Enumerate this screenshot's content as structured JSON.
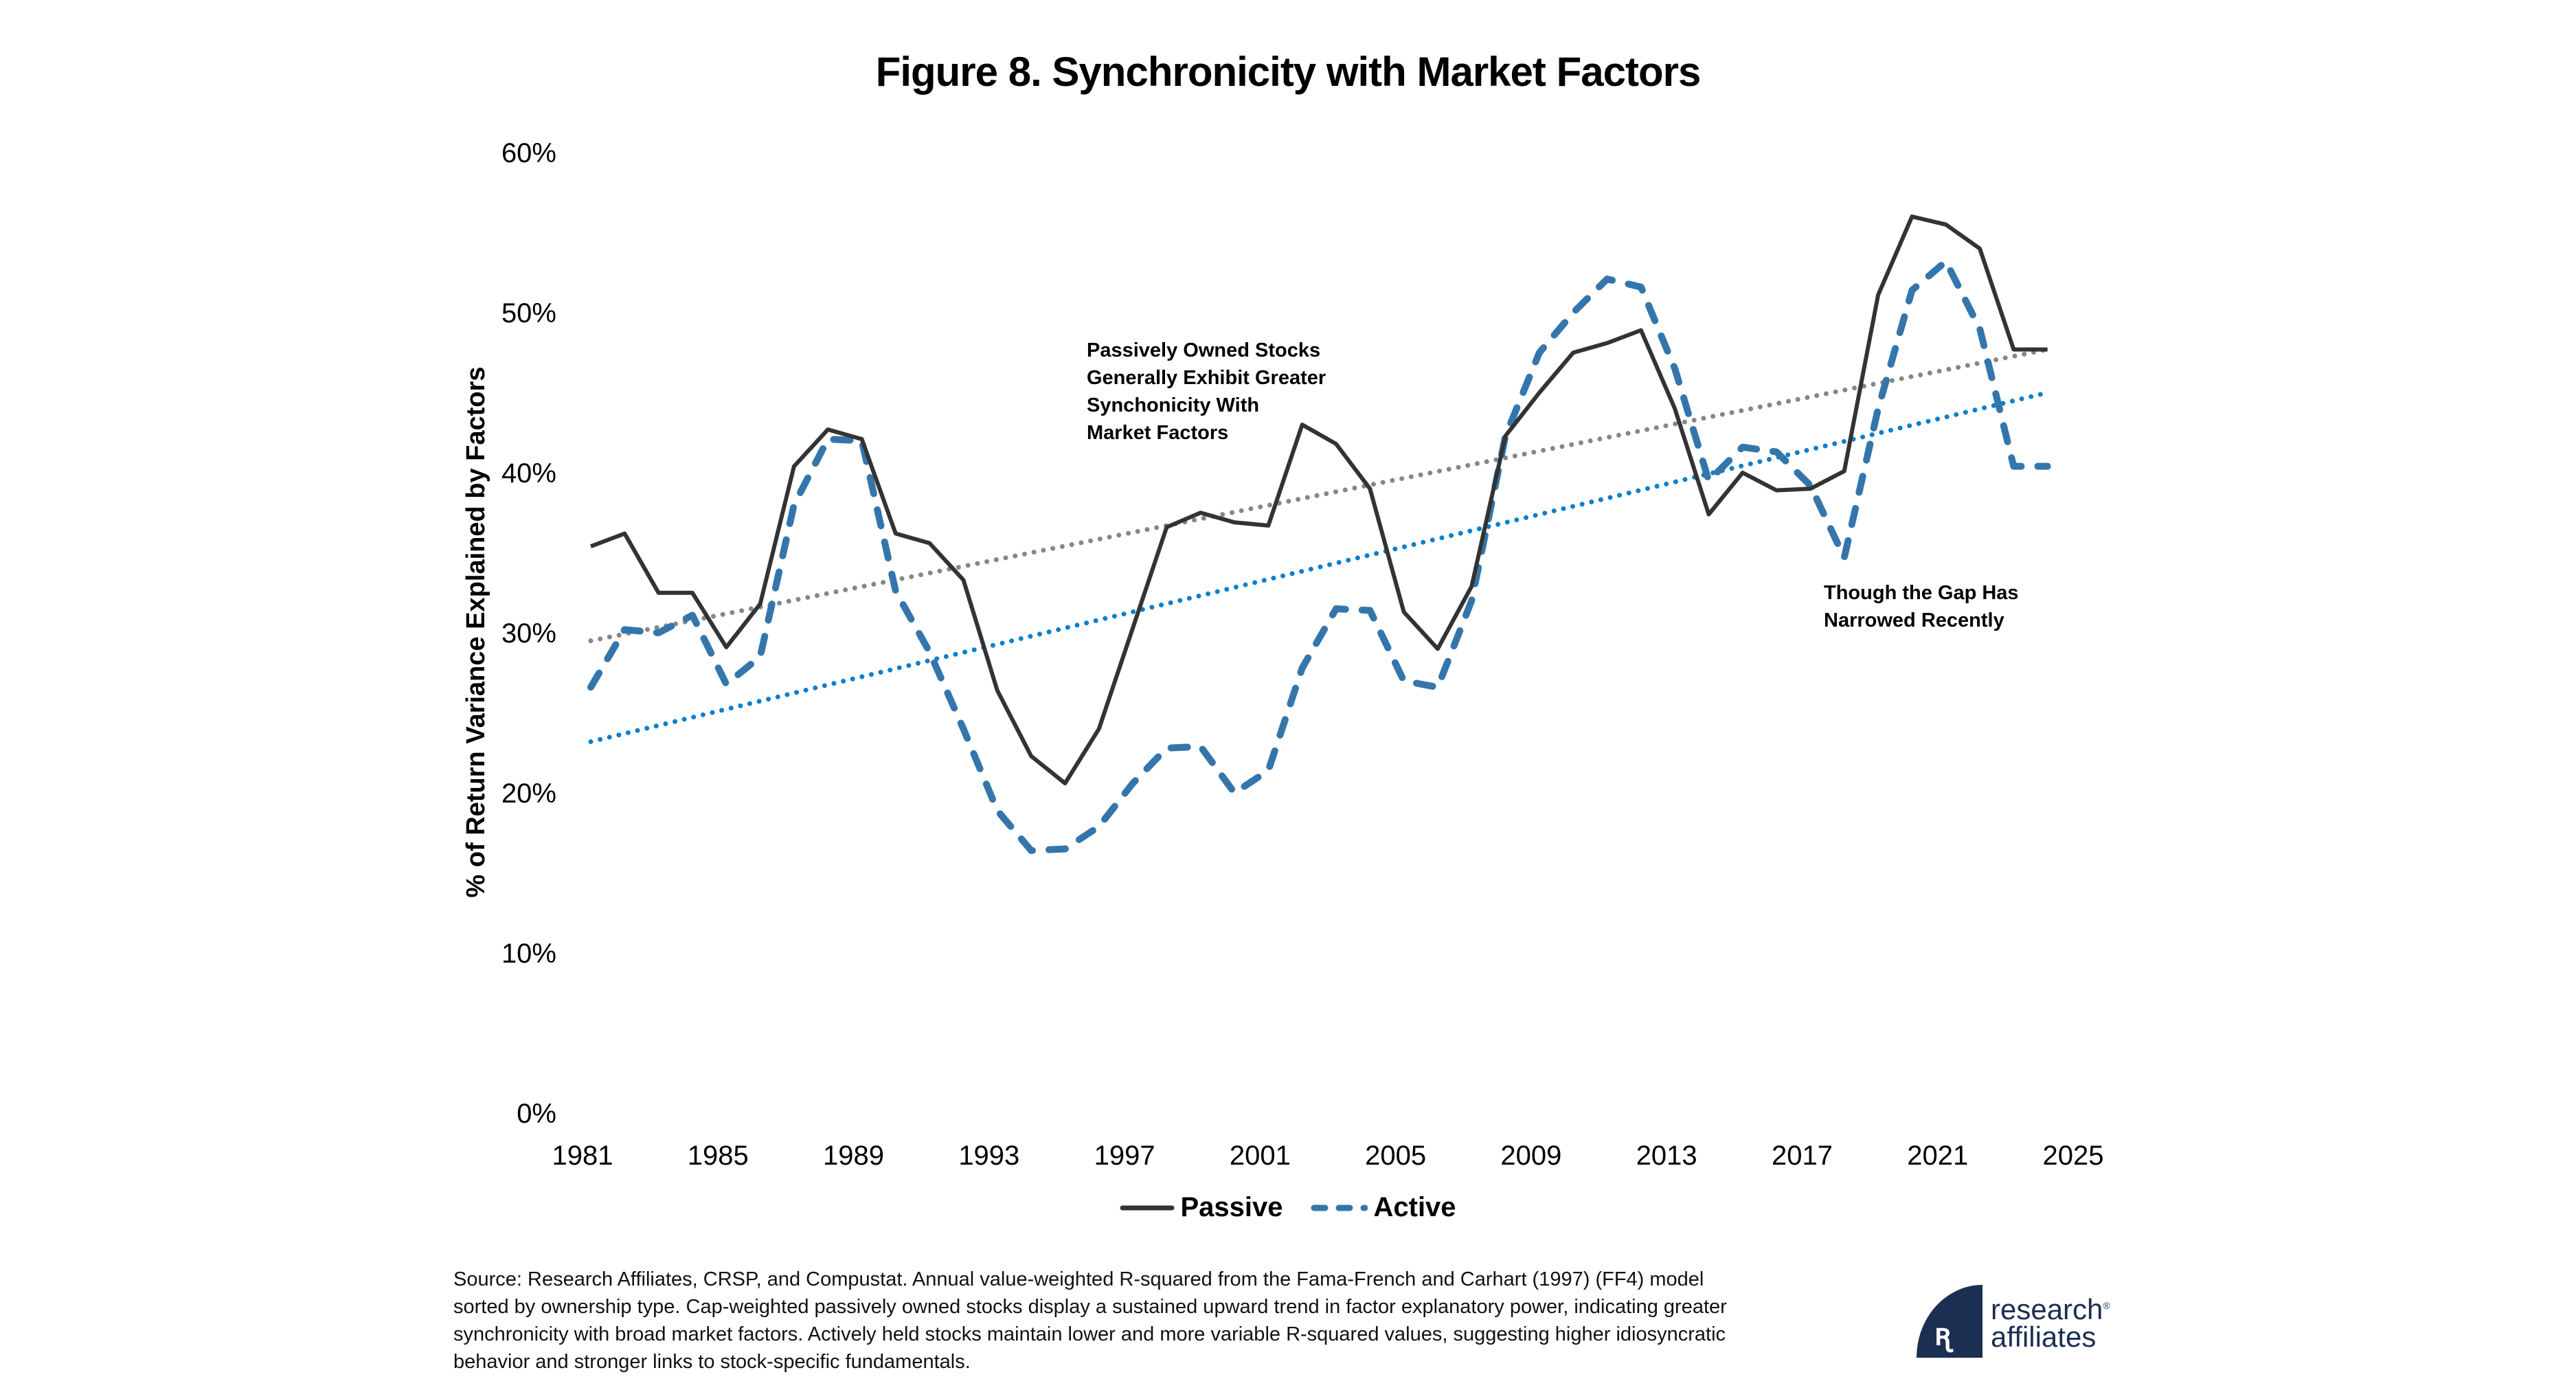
{
  "title": "Figure 8. Synchronicity with Market Factors",
  "chart_data": {
    "type": "line",
    "title": "Figure 8. Synchronicity with Market Factors",
    "xlabel": "",
    "ylabel": "% of Return Variance Explained by Factors",
    "xlim": [
      1981,
      2025
    ],
    "ylim": [
      0,
      60
    ],
    "x_ticks": [
      "1981",
      "1985",
      "1989",
      "1993",
      "1997",
      "2001",
      "2005",
      "2009",
      "2013",
      "2017",
      "2021",
      "2025"
    ],
    "y_ticks": [
      "0%",
      "10%",
      "20%",
      "30%",
      "40%",
      "50%",
      "60%"
    ],
    "grid": false,
    "legend_position": "bottom-center",
    "x": [
      1981,
      1982,
      1983,
      1984,
      1985,
      1986,
      1987,
      1988,
      1989,
      1990,
      1991,
      1992,
      1993,
      1994,
      1995,
      1996,
      1997,
      1998,
      1999,
      2000,
      2001,
      2002,
      2003,
      2004,
      2005,
      2006,
      2007,
      2008,
      2009,
      2010,
      2011,
      2012,
      2013,
      2014,
      2015,
      2016,
      2017,
      2018,
      2019,
      2020,
      2021,
      2022,
      2023,
      2024
    ],
    "series": [
      {
        "name": "Passive",
        "style": "solid",
        "color": "#333333",
        "values": [
          35.4,
          36.2,
          32.5,
          32.5,
          29.1,
          31.8,
          40.4,
          42.7,
          42.1,
          36.2,
          35.6,
          33.3,
          26.4,
          22.3,
          20.6,
          24.0,
          30.3,
          36.6,
          37.5,
          36.9,
          36.7,
          43.0,
          41.8,
          39.0,
          31.3,
          29.0,
          32.9,
          42.3,
          45.0,
          47.5,
          48.1,
          48.9,
          44.0,
          37.4,
          40.0,
          38.9,
          39.0,
          40.1,
          51.1,
          56.0,
          55.5,
          54.0,
          47.7,
          47.7
        ]
      },
      {
        "name": "Active",
        "style": "dashed",
        "color": "#3476ab",
        "values": [
          26.6,
          30.2,
          30.0,
          31.1,
          26.8,
          28.5,
          38.0,
          42.1,
          42.0,
          32.6,
          28.8,
          24.0,
          18.9,
          16.4,
          16.5,
          17.9,
          20.6,
          22.8,
          22.9,
          20.0,
          21.4,
          27.8,
          31.5,
          31.4,
          27.0,
          26.6,
          32.0,
          42.3,
          47.5,
          50.0,
          52.1,
          51.6,
          46.5,
          39.5,
          41.6,
          41.3,
          39.2,
          34.7,
          44.0,
          51.4,
          53.2,
          49.0,
          40.4,
          40.4
        ]
      }
    ],
    "trendlines": [
      {
        "name": "Passive trend",
        "style": "dotted",
        "color": "#868686",
        "x": [
          1981,
          2024
        ],
        "values": [
          29.5,
          47.7
        ]
      },
      {
        "name": "Active trend",
        "style": "dotted",
        "color": "#0a7fcc",
        "x": [
          1981,
          2024
        ],
        "values": [
          23.2,
          45.0
        ]
      }
    ],
    "annotations": [
      {
        "text": "Passively Owned Stocks Generally Exhibit Greater Synchonicity With Market Factors",
        "lines": [
          "Passively Owned Stocks",
          "Generally Exhibit Greater",
          "Synchonicity With",
          "Market Factors"
        ]
      },
      {
        "text": "Though the Gap Has Narrowed Recently",
        "lines": [
          "Though the Gap Has",
          "Narrowed Recently"
        ]
      }
    ]
  },
  "legend": {
    "passive": "Passive",
    "active": "Active"
  },
  "footer": "Source: Research Affiliates, CRSP, and Compustat. Annual value-weighted R-squared from the Fama-French and Carhart (1997) (FF4) model sorted by ownership type. Cap-weighted passively owned stocks display a sustained upward trend in factor explanatory power, indicating greater synchronicity with broad market factors. Actively held stocks maintain lower and more variable R-squared values, suggesting higher idiosyncratic behavior and stronger links to stock-specific fundamentals.",
  "logo": {
    "line1": "research",
    "line2": "affiliates",
    "mark": "ꭆ",
    "registered": "®"
  }
}
